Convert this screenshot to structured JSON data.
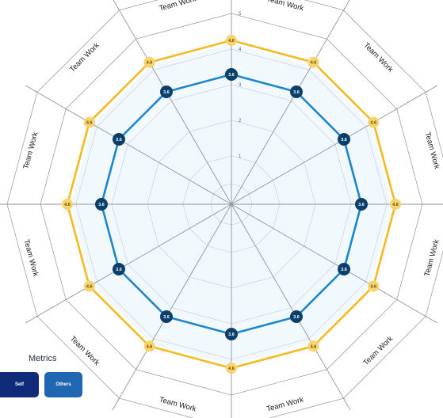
{
  "chart_data": {
    "type": "radar",
    "axes": [
      "Team Work",
      "Team Work",
      "Team Work",
      "Team Work",
      "Team Work",
      "Team Work",
      "Team Work",
      "Team Work",
      "Team Work",
      "Team Work",
      "Team Work",
      "Team Work"
    ],
    "rlim": [
      0,
      5
    ],
    "rticks": [
      "1",
      "2",
      "3",
      "4",
      "5"
    ],
    "series": [
      {
        "color": "#f5b921",
        "point_color": "#f9d36b",
        "values": [
          4.6,
          4.6,
          4.6,
          4.6,
          4.6,
          4.6,
          4.6,
          4.6,
          4.6,
          4.6,
          4.6,
          4.6
        ],
        "labels": [
          "4.6",
          "4.6",
          "4.6",
          "4.6",
          "4.6",
          "4.6",
          "4.6",
          "4.6",
          "4.6",
          "4.6",
          "4.6",
          "4.6"
        ]
      },
      {
        "color": "#1c86cc",
        "point_color": "#0b3f6b",
        "values": [
          3.6,
          3.6,
          3.6,
          3.6,
          3.6,
          3.6,
          3.6,
          3.6,
          3.6,
          3.6,
          3.6,
          3.6
        ],
        "labels": [
          "3.6",
          "3.6",
          "3.6",
          "3.6",
          "3.6",
          "3.6",
          "3.6",
          "3.6",
          "3.6",
          "3.6",
          "3.6",
          "3.6"
        ]
      }
    ],
    "legend": {
      "title": "Metrics",
      "items": [
        "Self",
        "Others"
      ],
      "colors": [
        "#0f2b7a",
        "#1f67b1"
      ]
    },
    "grid": true
  }
}
